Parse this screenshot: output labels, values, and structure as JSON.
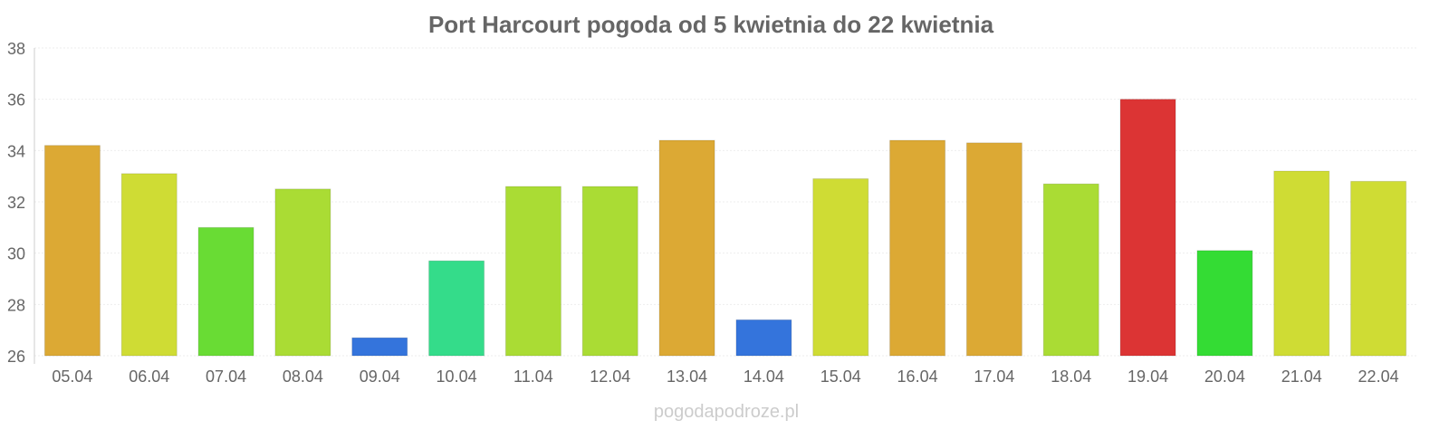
{
  "chart_data": {
    "type": "bar",
    "title": "Port Harcourt pogoda od 5 kwietnia do 22 kwietnia",
    "xlabel": "",
    "ylabel": "",
    "ylim": [
      26,
      38
    ],
    "yticks": [
      "26",
      "28",
      "30",
      "32",
      "34",
      "36",
      "38"
    ],
    "grid": true,
    "categories": [
      "05.04",
      "06.04",
      "07.04",
      "08.04",
      "09.04",
      "10.04",
      "11.04",
      "12.04",
      "13.04",
      "14.04",
      "15.04",
      "16.04",
      "17.04",
      "18.04",
      "19.04",
      "20.04",
      "21.04",
      "22.04"
    ],
    "values": [
      34.2,
      33.1,
      31.0,
      32.5,
      26.7,
      29.7,
      32.6,
      32.6,
      34.4,
      27.4,
      32.9,
      34.4,
      34.3,
      32.7,
      36.0,
      30.1,
      33.2,
      32.8
    ],
    "colors": [
      "#dca934",
      "#cfdc34",
      "#69dc34",
      "#aadc34",
      "#3474dc",
      "#34dc8a",
      "#aadc34",
      "#aadc34",
      "#dca934",
      "#3474dc",
      "#cfdc34",
      "#dca934",
      "#dca934",
      "#aadc34",
      "#dc3434",
      "#34dc34",
      "#cfdc34",
      "#cfdc34"
    ]
  },
  "footer": {
    "watermark": "pogodapodroze.pl"
  }
}
